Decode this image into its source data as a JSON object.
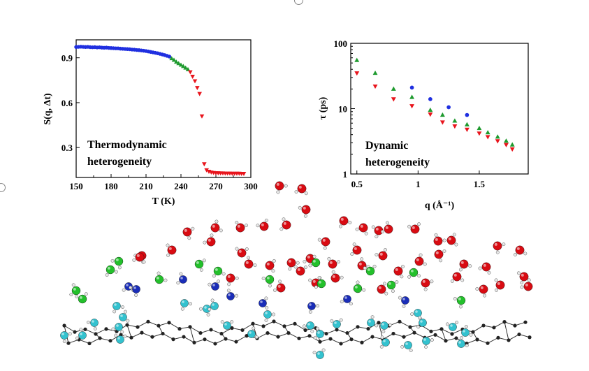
{
  "chart_data": [
    {
      "type": "scatter",
      "xlabel": "T (K)",
      "ylabel": "S(q, Δt)",
      "xlim": [
        150,
        300
      ],
      "ylim": [
        0.1,
        1.02
      ],
      "xticks": [
        "150",
        "180",
        "210",
        "240",
        "270",
        "300"
      ],
      "yticks": [
        "0.3",
        "0.6",
        "0.9"
      ],
      "annotation": [
        "Thermodynamic",
        "heterogeneity"
      ],
      "series": [
        {
          "color": "#1f2fe0",
          "marker": "circle",
          "x": [
            150,
            152,
            154,
            156,
            158,
            160,
            162,
            164,
            166,
            168,
            170,
            172,
            174,
            176,
            178,
            180,
            182,
            184,
            186,
            188,
            190,
            192,
            194,
            196,
            198,
            200,
            202,
            204,
            206,
            208,
            210,
            212,
            214,
            216,
            218,
            220,
            222,
            224,
            226,
            228,
            230
          ],
          "y": [
            0.972,
            0.973,
            0.974,
            0.973,
            0.972,
            0.973,
            0.971,
            0.97,
            0.971,
            0.969,
            0.97,
            0.968,
            0.967,
            0.968,
            0.966,
            0.965,
            0.964,
            0.963,
            0.963,
            0.961,
            0.96,
            0.959,
            0.958,
            0.957,
            0.955,
            0.954,
            0.952,
            0.951,
            0.949,
            0.947,
            0.945,
            0.942,
            0.939,
            0.936,
            0.933,
            0.93,
            0.926,
            0.922,
            0.918,
            0.913,
            0.908
          ]
        },
        {
          "color": "#1e9a2e",
          "marker": "triangle-up",
          "x": [
            232,
            234,
            236,
            238,
            240,
            242,
            244,
            246
          ],
          "y": [
            0.895,
            0.885,
            0.872,
            0.862,
            0.852,
            0.843,
            0.832,
            0.822
          ]
        },
        {
          "color": "#e8141c",
          "marker": "triangle-down",
          "x": [
            248,
            250,
            252,
            254,
            256,
            258,
            260,
            262,
            264,
            266,
            268,
            270,
            272,
            274,
            276,
            278,
            280,
            282,
            284,
            286,
            288,
            290,
            292,
            294
          ],
          "y": [
            0.805,
            0.775,
            0.745,
            0.7,
            0.66,
            0.51,
            0.19,
            0.15,
            0.14,
            0.135,
            0.132,
            0.13,
            0.13,
            0.129,
            0.129,
            0.128,
            0.128,
            0.128,
            0.127,
            0.127,
            0.127,
            0.127,
            0.126,
            0.126
          ]
        }
      ]
    },
    {
      "type": "scatter",
      "xlabel": "q (Å⁻¹)",
      "ylabel": "τ (ps)",
      "yscale": "log",
      "xlim": [
        0.45,
        1.9
      ],
      "ylim": [
        1,
        100
      ],
      "xticks": [
        "0.5",
        "1",
        "1.5"
      ],
      "yticks": [
        "1",
        "10",
        "100"
      ],
      "annotation": [
        "Dynamic",
        "heterogeneity"
      ],
      "series": [
        {
          "color": "#1f2fe0",
          "marker": "circle",
          "x": [
            0.95,
            1.1,
            1.25,
            1.4
          ],
          "y": [
            21,
            14,
            10.5,
            8
          ]
        },
        {
          "color": "#1e9a2e",
          "marker": "triangle-up",
          "x": [
            0.5,
            0.65,
            0.8,
            0.95,
            1.1,
            1.2,
            1.3,
            1.4,
            1.5,
            1.57,
            1.65,
            1.72,
            1.77
          ],
          "y": [
            55,
            35,
            20,
            15,
            9.5,
            8,
            6.5,
            5.7,
            5,
            4.3,
            3.7,
            3.2,
            2.8
          ]
        },
        {
          "color": "#e8141c",
          "marker": "triangle-down",
          "x": [
            0.5,
            0.65,
            0.8,
            0.95,
            1.1,
            1.2,
            1.3,
            1.4,
            1.5,
            1.57,
            1.65,
            1.72,
            1.77
          ],
          "y": [
            35,
            22,
            14,
            11,
            8.2,
            6.2,
            5.4,
            4.8,
            4.2,
            3.7,
            3.2,
            2.8,
            2.4
          ]
        }
      ]
    }
  ],
  "molecules": {
    "red_color": "#d90b12",
    "green_color": "#23c02b",
    "blue_color": "#1a2db8",
    "cyan_color": "#33c2cf",
    "substrate_color": "#222222"
  }
}
